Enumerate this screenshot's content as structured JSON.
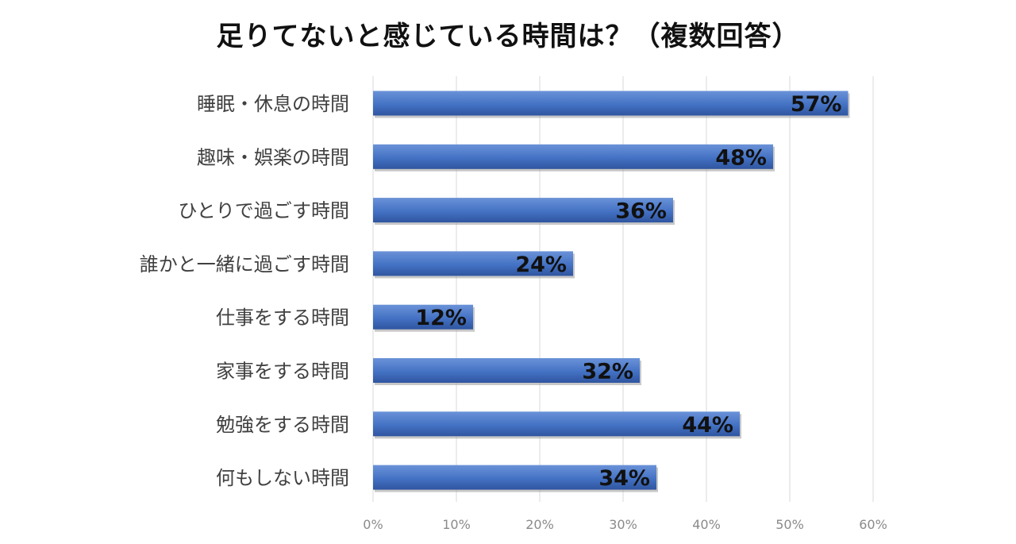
{
  "chart_data": {
    "type": "bar",
    "orientation": "horizontal",
    "title": "足りてないと感じている時間は？（複数回答）",
    "categories": [
      "睡眠・休息の時間",
      "趣味・娯楽の時間",
      "ひとりで過ごす時間",
      "誰かと一緒に過ごす時間",
      "仕事をする時間",
      "家事をする時間",
      "勉強をする時間",
      "何もしない時間"
    ],
    "values": [
      57,
      48,
      36,
      24,
      12,
      32,
      44,
      34
    ],
    "data_labels": [
      "57%",
      "48%",
      "36%",
      "24%",
      "12%",
      "32%",
      "44%",
      "34%"
    ],
    "xlim": [
      0,
      60
    ],
    "x_ticks": [
      0,
      10,
      20,
      30,
      40,
      50,
      60
    ],
    "x_tick_labels": [
      "0%",
      "10%",
      "20%",
      "30%",
      "40%",
      "50%",
      "60%"
    ],
    "xlabel": "",
    "ylabel": "",
    "grid": "vertical",
    "colors": {
      "bar": "#4472c4",
      "bar_top": "#6a92d8",
      "bar_bottom": "#2f559f",
      "grid": "#d9d9d9"
    }
  }
}
